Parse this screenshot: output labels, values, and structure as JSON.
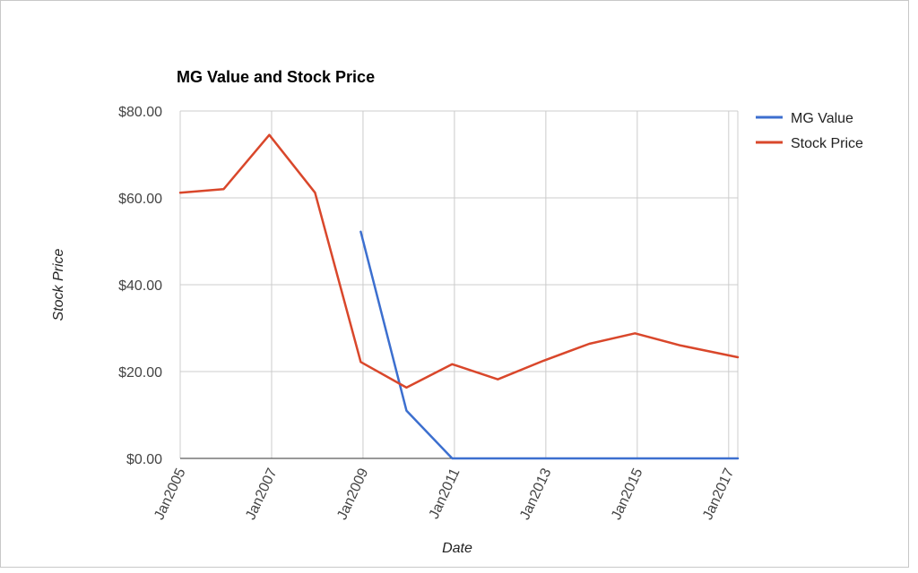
{
  "chart_data": {
    "type": "line",
    "title": "MG Value and Stock Price",
    "xlabel": "Date",
    "ylabel": "Stock Price",
    "xlim": [
      2005,
      2017.2
    ],
    "ylim": [
      0,
      80
    ],
    "x_ticks": [
      {
        "value": 2005,
        "label": "Jan2005"
      },
      {
        "value": 2007,
        "label": "Jan2007"
      },
      {
        "value": 2009,
        "label": "Jan2009"
      },
      {
        "value": 2011,
        "label": "Jan2011"
      },
      {
        "value": 2013,
        "label": "Jan2013"
      },
      {
        "value": 2015,
        "label": "Jan2015"
      },
      {
        "value": 2017,
        "label": "Jan2017"
      }
    ],
    "y_ticks": [
      {
        "value": 0,
        "label": "$0.00"
      },
      {
        "value": 20,
        "label": "$20.00"
      },
      {
        "value": 40,
        "label": "$40.00"
      },
      {
        "value": 60,
        "label": "$60.00"
      },
      {
        "value": 80,
        "label": "$80.00"
      }
    ],
    "grid": true,
    "legend_position": "right",
    "series": [
      {
        "name": "MG Value",
        "color": "#3c6fcf",
        "points": [
          [
            2008.95,
            52.2
          ],
          [
            2009.95,
            11
          ],
          [
            2010.95,
            0
          ],
          [
            2017.2,
            0
          ]
        ]
      },
      {
        "name": "Stock Price",
        "color": "#d9472b",
        "points": [
          [
            2005,
            61.2
          ],
          [
            2005.95,
            62
          ],
          [
            2006.95,
            74.5
          ],
          [
            2007.95,
            61.2
          ],
          [
            2008.95,
            22.2
          ],
          [
            2009.95,
            16.3
          ],
          [
            2010.95,
            21.7
          ],
          [
            2011.95,
            18.2
          ],
          [
            2012.95,
            22.5
          ],
          [
            2013.95,
            26.4
          ],
          [
            2014.95,
            28.8
          ],
          [
            2015.95,
            26
          ],
          [
            2017.2,
            23.3
          ]
        ]
      }
    ]
  }
}
